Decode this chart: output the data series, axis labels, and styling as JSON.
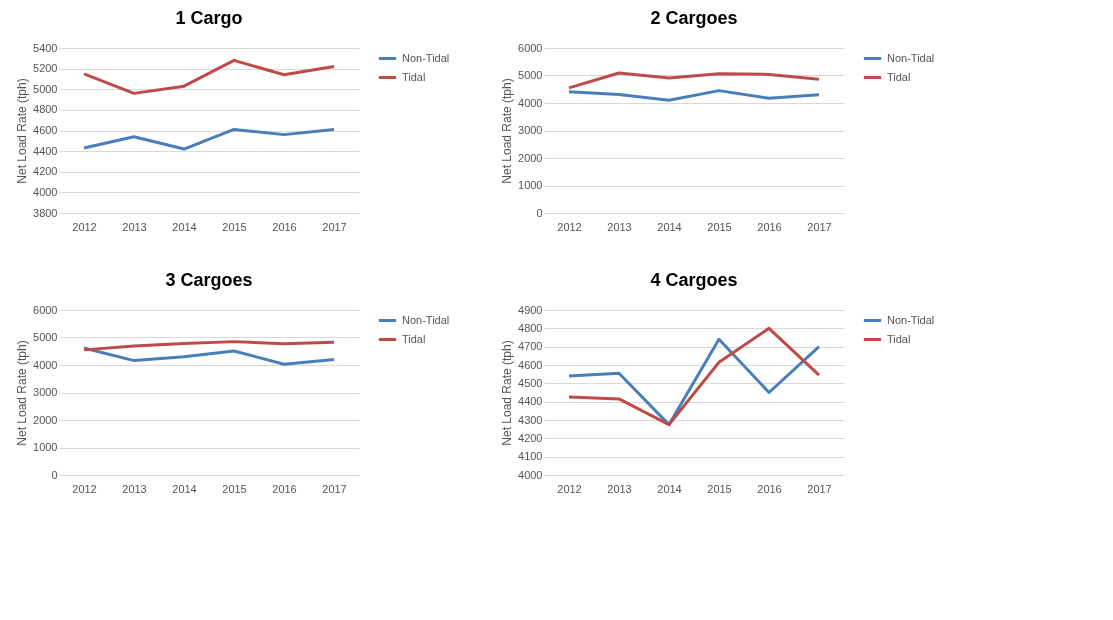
{
  "chart_data": [
    {
      "type": "line",
      "title": "1 Cargo",
      "ylabel": "Net Load Rate (tph)",
      "categories": [
        "2012",
        "2013",
        "2014",
        "2015",
        "2016",
        "2017"
      ],
      "ylim": [
        3800,
        5400
      ],
      "yticks": [
        3800,
        4000,
        4200,
        4400,
        4600,
        4800,
        5000,
        5200,
        5400
      ],
      "grid": "y",
      "legend": "right",
      "series": [
        {
          "name": "Non-Tidal",
          "color": "#4a7ebb",
          "values": [
            4430,
            4540,
            4420,
            4610,
            4560,
            4610
          ]
        },
        {
          "name": "Tidal",
          "color": "#be4b48",
          "values": [
            5150,
            4960,
            5030,
            5280,
            5140,
            5220
          ]
        }
      ]
    },
    {
      "type": "line",
      "title": "2 Cargoes",
      "ylabel": "Net Load Rate (tph)",
      "categories": [
        "2012",
        "2013",
        "2014",
        "2015",
        "2016",
        "2017"
      ],
      "ylim": [
        0,
        6000
      ],
      "yticks": [
        0,
        1000,
        2000,
        3000,
        4000,
        5000,
        6000
      ],
      "grid": "y",
      "legend": "right",
      "series": [
        {
          "name": "Non-Tidal",
          "color": "#4a7ebb",
          "values": [
            4410,
            4310,
            4100,
            4450,
            4170,
            4300
          ]
        },
        {
          "name": "Tidal",
          "color": "#be4b48",
          "values": [
            4550,
            5090,
            4910,
            5060,
            5040,
            4860
          ]
        }
      ]
    },
    {
      "type": "line",
      "title": "3 Cargoes",
      "ylabel": "Net Load Rate (tph)",
      "categories": [
        "2012",
        "2013",
        "2014",
        "2015",
        "2016",
        "2017"
      ],
      "ylim": [
        0,
        6000
      ],
      "yticks": [
        0,
        1000,
        2000,
        3000,
        4000,
        5000,
        6000
      ],
      "grid": "y",
      "legend": "right",
      "series": [
        {
          "name": "Non-Tidal",
          "color": "#4a7ebb",
          "values": [
            4620,
            4160,
            4300,
            4510,
            4030,
            4200
          ]
        },
        {
          "name": "Tidal",
          "color": "#be4b48",
          "values": [
            4550,
            4690,
            4780,
            4850,
            4770,
            4830
          ]
        }
      ]
    },
    {
      "type": "line",
      "title": "4 Cargoes",
      "ylabel": "Net Load Rate (tph)",
      "categories": [
        "2012",
        "2013",
        "2014",
        "2015",
        "2016",
        "2017"
      ],
      "ylim": [
        4000,
        4900
      ],
      "yticks": [
        4000,
        4100,
        4200,
        4300,
        4400,
        4500,
        4600,
        4700,
        4800,
        4900
      ],
      "grid": "y",
      "legend": "right",
      "series": [
        {
          "name": "Non-Tidal",
          "color": "#4a7ebb",
          "values": [
            4540,
            4555,
            4275,
            4740,
            4450,
            4700
          ]
        },
        {
          "name": "Tidal",
          "color": "#be4b48",
          "values": [
            4425,
            4415,
            4275,
            4615,
            4800,
            4545
          ]
        }
      ]
    }
  ]
}
